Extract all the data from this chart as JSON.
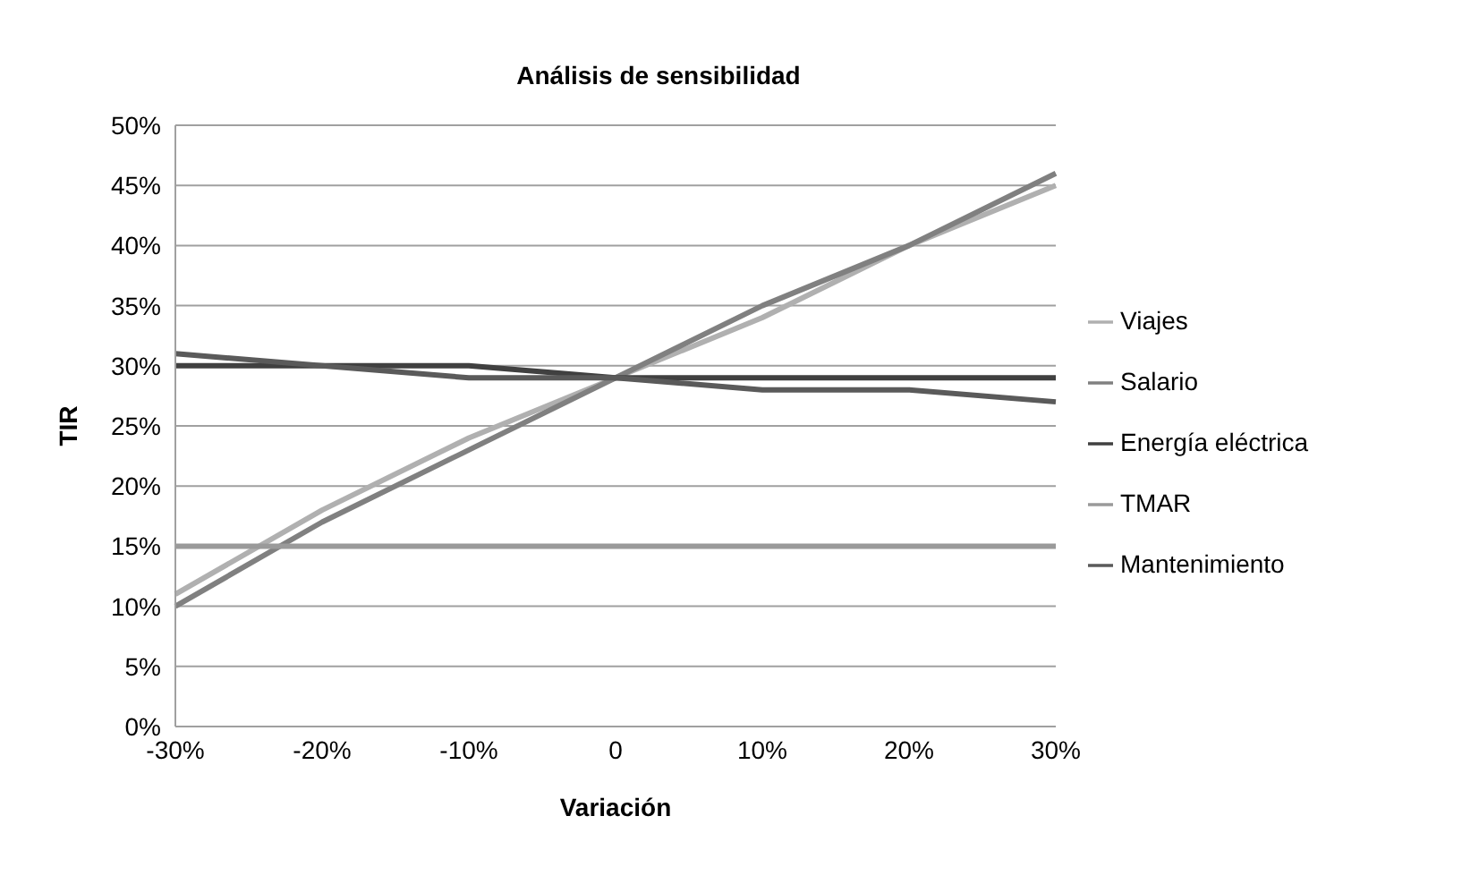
{
  "chart_data": {
    "type": "line",
    "title": "Análisis de sensibilidad",
    "xlabel": "Variación",
    "ylabel": "TIR",
    "categories": [
      "-30%",
      "-20%",
      "-10%",
      "0",
      "10%",
      "20%",
      "30%"
    ],
    "series": [
      {
        "name": "Viajes",
        "color": "#b0b0b0",
        "values": [
          11,
          18,
          24,
          29,
          34,
          40,
          45
        ]
      },
      {
        "name": "Salario",
        "color": "#808080",
        "values": [
          10,
          17,
          23,
          29,
          35,
          40,
          46
        ]
      },
      {
        "name": "Energía eléctrica",
        "color": "#404040",
        "values": [
          30,
          30,
          30,
          29,
          29,
          29,
          29
        ]
      },
      {
        "name": "TMAR",
        "color": "#9a9a9a",
        "values": [
          15,
          15,
          15,
          15,
          15,
          15,
          15
        ]
      },
      {
        "name": "Mantenimiento",
        "color": "#5a5a5a",
        "values": [
          31,
          30,
          29,
          29,
          28,
          28,
          27
        ]
      }
    ],
    "ylim": [
      0,
      50
    ],
    "yticks": [
      {
        "value": 0,
        "label": "0%"
      },
      {
        "value": 5,
        "label": "5%"
      },
      {
        "value": 10,
        "label": "10%"
      },
      {
        "value": 15,
        "label": "15%"
      },
      {
        "value": 20,
        "label": "20%"
      },
      {
        "value": 25,
        "label": "25%"
      },
      {
        "value": 30,
        "label": "30%"
      },
      {
        "value": 35,
        "label": "35%"
      },
      {
        "value": 40,
        "label": "40%"
      },
      {
        "value": 45,
        "label": "45%"
      },
      {
        "value": 50,
        "label": "50%"
      }
    ],
    "grid": "y",
    "legend": "right",
    "marker": "none",
    "line_style": "solid"
  }
}
